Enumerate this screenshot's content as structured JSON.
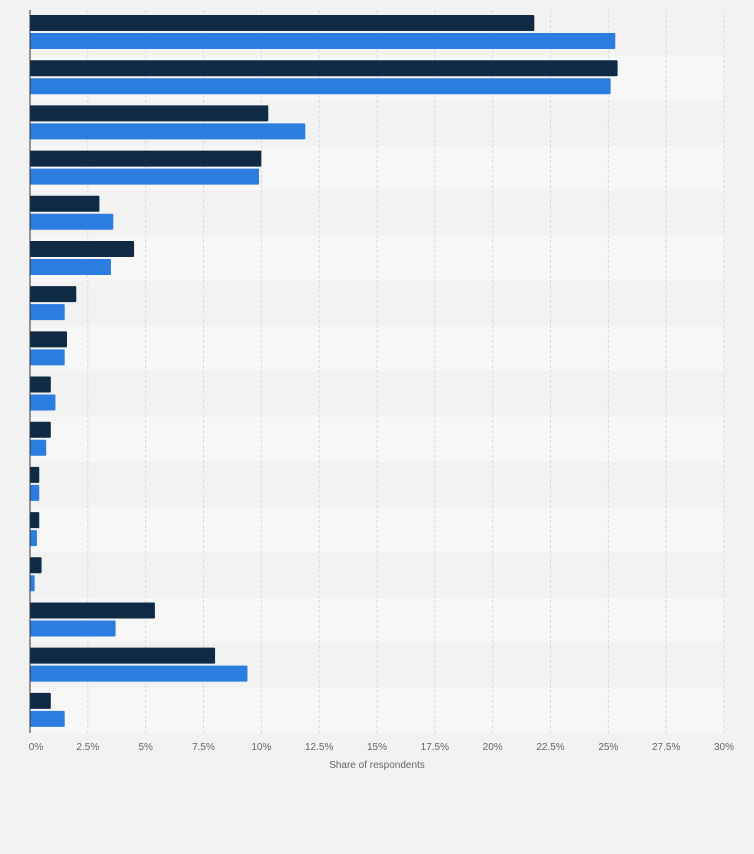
{
  "chart_data": {
    "type": "bar",
    "orientation": "horizontal",
    "xlabel": "Share of respondents",
    "ylabel": "",
    "title": "",
    "xlim": [
      0,
      30
    ],
    "x_ticks": [
      0,
      2.5,
      5,
      7.5,
      10,
      12.5,
      15,
      17.5,
      20,
      22.5,
      25,
      27.5,
      30
    ],
    "x_tick_labels": [
      "0%",
      "2.5%",
      "5%",
      "7.5%",
      "10%",
      "12.5%",
      "15%",
      "17.5%",
      "20%",
      "22.5%",
      "25%",
      "27.5%",
      "30%"
    ],
    "grid": true,
    "legend": "none",
    "categories": [
      "",
      "",
      "",
      "",
      "",
      "",
      "",
      "",
      "",
      "",
      "",
      "",
      "",
      "",
      "",
      ""
    ],
    "series": [
      {
        "color": "#0f2a44",
        "values": [
          21.8,
          25.4,
          10.3,
          10.0,
          3.0,
          4.5,
          2.0,
          1.6,
          0.9,
          0.9,
          0.4,
          0.4,
          0.5,
          5.4,
          8.0,
          0.9
        ]
      },
      {
        "color": "#2b7de0",
        "values": [
          25.3,
          25.1,
          11.9,
          9.9,
          3.6,
          3.5,
          1.5,
          1.5,
          1.1,
          0.7,
          0.4,
          0.3,
          0.2,
          3.7,
          9.4,
          1.5
        ]
      }
    ],
    "band_colors": [
      "#f2f2f2",
      "#f7f7f7"
    ]
  }
}
